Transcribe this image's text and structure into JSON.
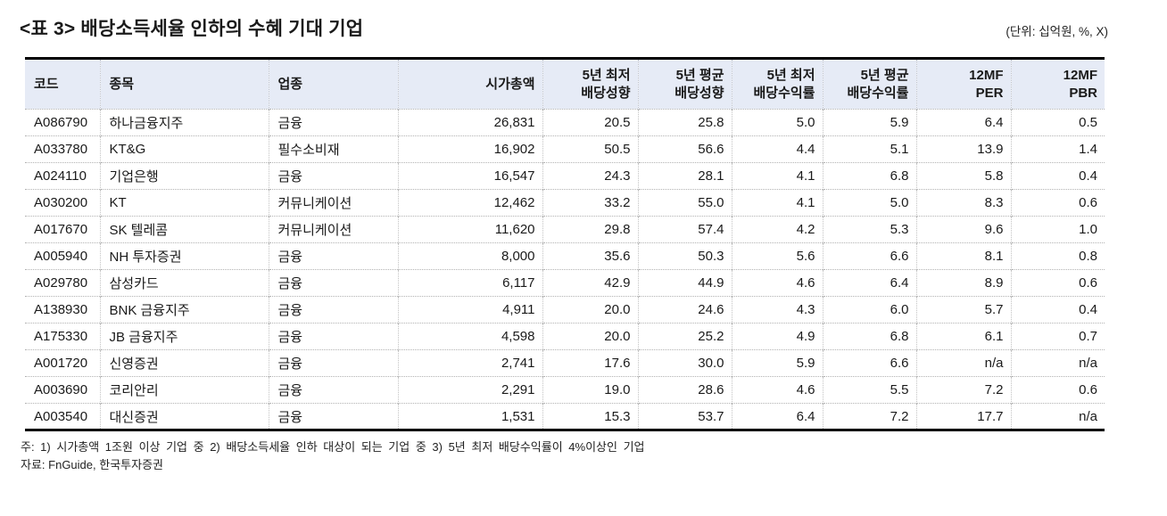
{
  "page": {
    "title": "<표 3> 배당소득세율 인하의 수혜 기대 기업",
    "unit_note": "(단위: 십억원, %, X)"
  },
  "colors": {
    "header_background": "#e6ebf6",
    "strong_border": "#000000",
    "dotted_border": "#c3c3c3",
    "text": "#1a1a1a"
  },
  "table": {
    "columns": [
      {
        "id": "code",
        "lines": [
          "코드"
        ],
        "align": "left"
      },
      {
        "id": "name",
        "lines": [
          "종목"
        ],
        "align": "left"
      },
      {
        "id": "sector",
        "lines": [
          "업종"
        ],
        "align": "left"
      },
      {
        "id": "market-cap",
        "lines": [
          "시가총액"
        ],
        "align": "right"
      },
      {
        "id": "payout-5y-min",
        "lines": [
          "5년 최저",
          "배당성향"
        ],
        "align": "right"
      },
      {
        "id": "payout-5y-avg",
        "lines": [
          "5년 평균",
          "배당성향"
        ],
        "align": "right"
      },
      {
        "id": "yield-5y-min",
        "lines": [
          "5년 최저",
          "배당수익률"
        ],
        "align": "right"
      },
      {
        "id": "yield-5y-avg",
        "lines": [
          "5년 평균",
          "배당수익률"
        ],
        "align": "right"
      },
      {
        "id": "per-12mf",
        "lines": [
          "12MF",
          "PER"
        ],
        "align": "right"
      },
      {
        "id": "pbr-12mf",
        "lines": [
          "12MF",
          "PBR"
        ],
        "align": "right"
      }
    ],
    "rows": [
      [
        "A086790",
        "하나금융지주",
        "금융",
        "26,831",
        "20.5",
        "25.8",
        "5.0",
        "5.9",
        "6.4",
        "0.5"
      ],
      [
        "A033780",
        "KT&G",
        "필수소비재",
        "16,902",
        "50.5",
        "56.6",
        "4.4",
        "5.1",
        "13.9",
        "1.4"
      ],
      [
        "A024110",
        "기업은행",
        "금융",
        "16,547",
        "24.3",
        "28.1",
        "4.1",
        "6.8",
        "5.8",
        "0.4"
      ],
      [
        "A030200",
        "KT",
        "커뮤니케이션",
        "12,462",
        "33.2",
        "55.0",
        "4.1",
        "5.0",
        "8.3",
        "0.6"
      ],
      [
        "A017670",
        "SK 텔레콤",
        "커뮤니케이션",
        "11,620",
        "29.8",
        "57.4",
        "4.2",
        "5.3",
        "9.6",
        "1.0"
      ],
      [
        "A005940",
        "NH 투자증권",
        "금융",
        "8,000",
        "35.6",
        "50.3",
        "5.6",
        "6.6",
        "8.1",
        "0.8"
      ],
      [
        "A029780",
        "삼성카드",
        "금융",
        "6,117",
        "42.9",
        "44.9",
        "4.6",
        "6.4",
        "8.9",
        "0.6"
      ],
      [
        "A138930",
        "BNK 금융지주",
        "금융",
        "4,911",
        "20.0",
        "24.6",
        "4.3",
        "6.0",
        "5.7",
        "0.4"
      ],
      [
        "A175330",
        "JB 금융지주",
        "금융",
        "4,598",
        "20.0",
        "25.2",
        "4.9",
        "6.8",
        "6.1",
        "0.7"
      ],
      [
        "A001720",
        "신영증권",
        "금융",
        "2,741",
        "17.6",
        "30.0",
        "5.9",
        "6.6",
        "n/a",
        "n/a"
      ],
      [
        "A003690",
        "코리안리",
        "금융",
        "2,291",
        "19.0",
        "28.6",
        "4.6",
        "5.5",
        "7.2",
        "0.6"
      ],
      [
        "A003540",
        "대신증권",
        "금융",
        "1,531",
        "15.3",
        "53.7",
        "6.4",
        "7.2",
        "17.7",
        "n/a"
      ]
    ]
  },
  "footnotes": {
    "criteria": "주: 1) 시가총액 1조원 이상 기업 중 2) 배당소득세율 인하 대상이 되는 기업 중 3) 5년 최저 배당수익률이 4%이상인 기업",
    "source": "자료: FnGuide, 한국투자증권"
  }
}
